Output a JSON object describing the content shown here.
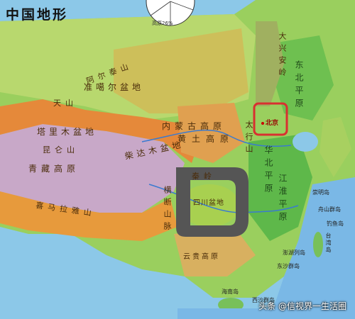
{
  "map": {
    "title": "中国地形",
    "pie_labels": [
      "高原26%"
    ],
    "labels": {
      "xinganling": "大兴安岭",
      "dongbei_plain": "东北平原",
      "altai": "阿尔泰山",
      "junggar": "准噶尔盆地",
      "tianshan": "天山",
      "tarim": "塔里木盆地",
      "kunlun": "昆仑山",
      "qinghai_tibet": "青藏高原",
      "qaidam": "柴达木盆地",
      "himalaya": "喜马拉雅山",
      "hengduan": "横断山脉",
      "sichuan": "四川盆地",
      "qinling": "秦岭",
      "taihang": "太行山",
      "loess": "黄土高原",
      "inner_mongolia": "内蒙古高原",
      "huabei_plain": "华北平原",
      "north": "北京",
      "jianghuai": "江淮平原",
      "yungui": "云贵高原",
      "hainan": "海南岛",
      "taiwan": "台湾岛",
      "chongming": "崇明岛",
      "zhoushan": "舟山群岛",
      "penghu": "澎湖列岛",
      "dongsha": "东沙群岛",
      "diaoyu": "钓鱼岛",
      "xisha": "西沙群岛"
    },
    "watermark": "头条 @信视界一生活圈"
  },
  "colors": {
    "sea": "#8cc8e8",
    "lowland": "#7cc85a",
    "hills": "#c8d870",
    "plateau": "#e8a04a",
    "high_plateau": "#e07a2e",
    "mountain": "#c8a0c8",
    "annotation_box": "#d83030",
    "annotation_shape": "#555555"
  }
}
